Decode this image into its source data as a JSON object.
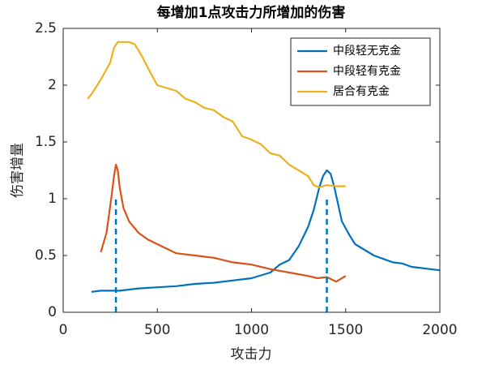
{
  "chart_data": {
    "type": "line",
    "title": "每增加1点攻击力所增加的伤害",
    "x_label": "攻击力",
    "y_label": "伤害增量",
    "xlim": [
      0,
      2000
    ],
    "ylim": [
      0,
      2.5
    ],
    "xticks": [
      0,
      500,
      1000,
      1500,
      2000
    ],
    "yticks": [
      0,
      0.5,
      1,
      1.5,
      2,
      2.5
    ],
    "legend": "northeast",
    "series": [
      {
        "name": "中段轻无克金",
        "color": "#0072bd",
        "x": [
          150,
          200,
          300,
          400,
          500,
          600,
          700,
          800,
          900,
          1000,
          1100,
          1150,
          1200,
          1250,
          1300,
          1330,
          1360,
          1380,
          1400,
          1420,
          1440,
          1460,
          1480,
          1520,
          1550,
          1600,
          1650,
          1700,
          1750,
          1800,
          1850,
          1900,
          1950,
          2000
        ],
        "values": [
          0.18,
          0.19,
          0.19,
          0.21,
          0.22,
          0.23,
          0.25,
          0.26,
          0.28,
          0.3,
          0.35,
          0.42,
          0.46,
          0.58,
          0.75,
          0.9,
          1.1,
          1.2,
          1.25,
          1.22,
          1.1,
          0.95,
          0.8,
          0.68,
          0.6,
          0.55,
          0.5,
          0.47,
          0.44,
          0.43,
          0.4,
          0.39,
          0.38,
          0.37
        ]
      },
      {
        "name": "中段轻有克金",
        "color": "#d95319",
        "x": [
          200,
          230,
          255,
          270,
          280,
          290,
          300,
          320,
          350,
          400,
          450,
          500,
          600,
          700,
          800,
          900,
          1000,
          1100,
          1200,
          1300,
          1350,
          1400,
          1450,
          1500
        ],
        "values": [
          0.53,
          0.7,
          1.0,
          1.2,
          1.3,
          1.25,
          1.1,
          0.92,
          0.8,
          0.7,
          0.64,
          0.6,
          0.52,
          0.5,
          0.48,
          0.44,
          0.42,
          0.38,
          0.35,
          0.32,
          0.3,
          0.31,
          0.27,
          0.32
        ]
      },
      {
        "name": "居合有克金",
        "color": "#edb120",
        "x": [
          130,
          150,
          200,
          250,
          270,
          290,
          350,
          380,
          420,
          460,
          500,
          600,
          650,
          700,
          750,
          800,
          850,
          900,
          950,
          1000,
          1050,
          1100,
          1150,
          1200,
          1250,
          1300,
          1330,
          1360,
          1400,
          1450,
          1500
        ],
        "values": [
          1.88,
          1.92,
          2.05,
          2.2,
          2.33,
          2.38,
          2.38,
          2.36,
          2.25,
          2.12,
          2.0,
          1.95,
          1.88,
          1.85,
          1.8,
          1.78,
          1.72,
          1.68,
          1.55,
          1.52,
          1.48,
          1.4,
          1.38,
          1.3,
          1.25,
          1.2,
          1.12,
          1.1,
          1.12,
          1.11,
          1.11
        ]
      }
    ],
    "reference_lines": {
      "color": "#0072bd",
      "x": [
        280,
        1400
      ],
      "values": [
        1,
        1
      ]
    }
  }
}
